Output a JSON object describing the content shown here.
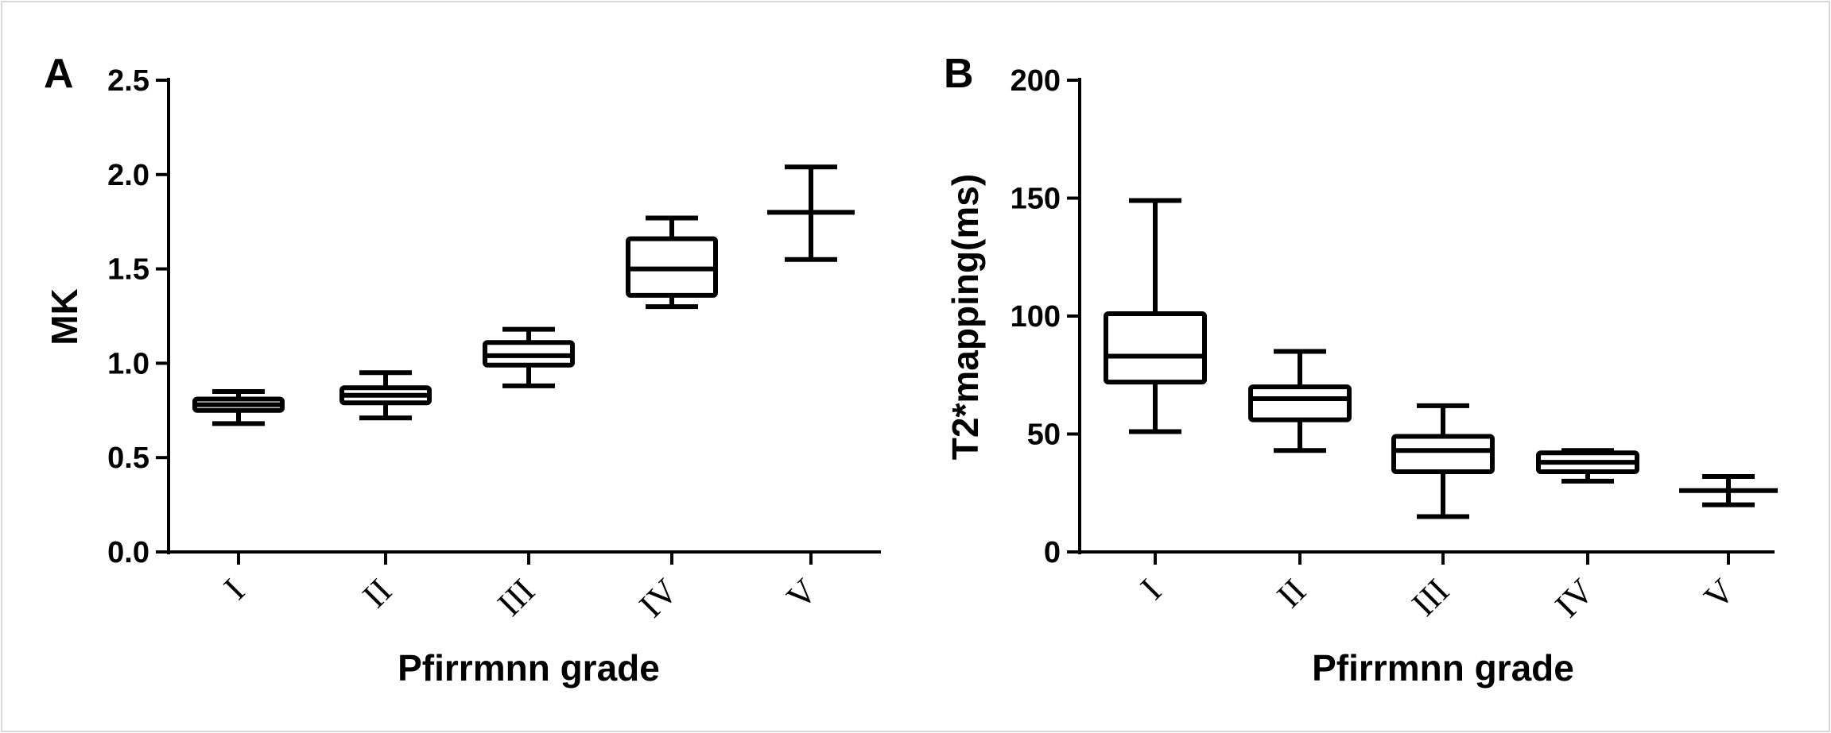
{
  "chart_data": [
    {
      "panel": "A",
      "type": "box",
      "xlabel": "Pfirrmnn grade",
      "ylabel": "MK",
      "ylim": [
        0,
        2.5
      ],
      "yticks": [
        "0.0",
        "0.5",
        "1.0",
        "1.5",
        "2.0",
        "2.5"
      ],
      "categories": [
        "I",
        "II",
        "III",
        "IV",
        "V"
      ],
      "boxes": [
        {
          "category": "I",
          "min": 0.68,
          "q1": 0.75,
          "median": 0.78,
          "q3": 0.81,
          "max": 0.85
        },
        {
          "category": "II",
          "min": 0.71,
          "q1": 0.79,
          "median": 0.83,
          "q3": 0.87,
          "max": 0.95
        },
        {
          "category": "III",
          "min": 0.88,
          "q1": 0.99,
          "median": 1.04,
          "q3": 1.11,
          "max": 1.18
        },
        {
          "category": "IV",
          "min": 1.3,
          "q1": 1.36,
          "median": 1.5,
          "q3": 1.66,
          "max": 1.77
        },
        {
          "category": "V",
          "min": 1.55,
          "q1": 1.8,
          "median": 1.8,
          "q3": 1.8,
          "max": 2.04
        }
      ]
    },
    {
      "panel": "B",
      "type": "box",
      "xlabel": "Pfirrmnn grade",
      "ylabel": "T2*mapping(ms)",
      "ylim": [
        0,
        200
      ],
      "yticks": [
        "0",
        "50",
        "100",
        "150",
        "200"
      ],
      "categories": [
        "I",
        "II",
        "III",
        "IV",
        "V"
      ],
      "boxes": [
        {
          "category": "I",
          "min": 51,
          "q1": 72,
          "median": 83,
          "q3": 101,
          "max": 149
        },
        {
          "category": "II",
          "min": 43,
          "q1": 56,
          "median": 65,
          "q3": 70,
          "max": 85
        },
        {
          "category": "III",
          "min": 15,
          "q1": 34,
          "median": 43,
          "q3": 49,
          "max": 62
        },
        {
          "category": "IV",
          "min": 30,
          "q1": 34,
          "median": 38,
          "q3": 42,
          "max": 43
        },
        {
          "category": "V",
          "min": 20,
          "q1": 26,
          "median": 26,
          "q3": 26,
          "max": 32
        }
      ]
    }
  ]
}
